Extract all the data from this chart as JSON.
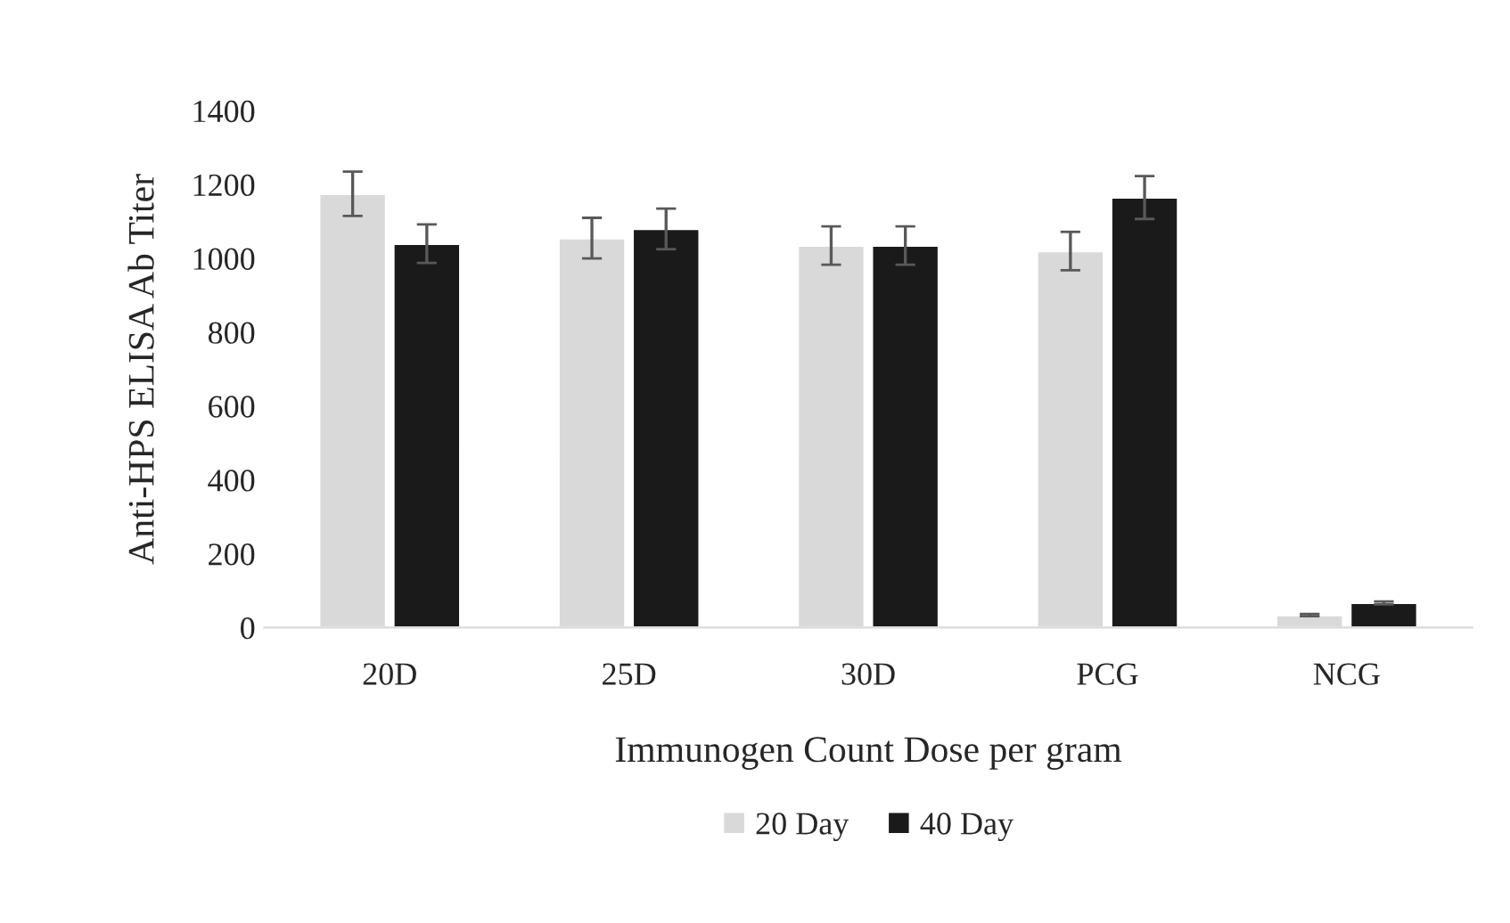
{
  "chart_data": {
    "type": "bar",
    "xlabel": "Immunogen Count Dose per gram",
    "ylabel": "Anti-HPS ELISA Ab Titer",
    "categories": [
      "20D",
      "25D",
      "30D",
      "PCG",
      "NCG"
    ],
    "series": [
      {
        "name": "20 Day",
        "color": "#d9d9d9",
        "values": [
          1175,
          1055,
          1035,
          1020,
          34
        ],
        "errors": [
          60,
          55,
          52,
          52,
          3
        ]
      },
      {
        "name": "40 Day",
        "color": "#1a1a1a",
        "values": [
          1040,
          1080,
          1035,
          1165,
          67
        ],
        "errors": [
          52,
          55,
          52,
          58,
          4
        ]
      }
    ],
    "ylim": [
      0,
      1400
    ],
    "yticks": [
      0,
      200,
      400,
      600,
      800,
      1000,
      1200,
      1400
    ],
    "grid": false,
    "legend": "bottom"
  }
}
